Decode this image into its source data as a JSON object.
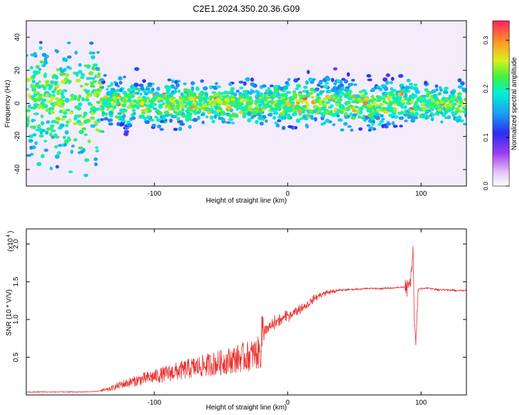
{
  "title": "C2E1.2024.350.20.36.G09",
  "spectrogram": {
    "xlabel": "Height of straight line (km)",
    "ylabel": "Frequency (Hz)",
    "xlim": [
      -196,
      134
    ],
    "ylim": [
      -50,
      50
    ],
    "xticks": [
      -100,
      0,
      100
    ],
    "yticks": [
      -40,
      -20,
      0,
      20,
      40
    ],
    "colorbar": {
      "label": "Normalized spectral amplitude",
      "range": [
        0.0,
        0.34
      ],
      "ticks": [
        "0.0",
        "0.1",
        "0.2",
        "0.3"
      ]
    }
  },
  "snr_plot": {
    "xlabel": "Height of straight line (km)",
    "ylabel": "SNR (10 * V/V)",
    "scale_label": "(x10",
    "scale_exp": "4",
    "xlim": [
      -196,
      134
    ],
    "ylim": [
      0,
      2.2
    ],
    "xticks": [
      -100,
      0,
      100
    ],
    "yticks": [
      "0.5",
      "1.0",
      "1.5",
      "2.0"
    ],
    "line_color": "#e8322e"
  },
  "chart_data": [
    {
      "type": "heatmap",
      "title": "C2E1.2024.350.20.36.G09",
      "xlabel": "Height of straight line (km)",
      "ylabel": "Frequency (Hz)",
      "xlim": [
        -196,
        134
      ],
      "ylim": [
        -50,
        50
      ],
      "colorbar_label": "Normalized spectral amplitude",
      "colorbar_range": [
        0.0,
        0.34
      ],
      "description_values": {
        "band_center_hz": 0,
        "band_halfwidth_hz_high_altitude": 25,
        "peak_amplitude": 0.3
      }
    },
    {
      "type": "line",
      "xlabel": "Height of straight line (km)",
      "ylabel": "SNR (10 * V/V)",
      "y_multiplier": 10000,
      "xlim": [
        -196,
        134
      ],
      "ylim": [
        0,
        2.2
      ],
      "series": [
        {
          "x": [
            -196,
            -150,
            -135,
            -125,
            -110,
            -90,
            -70,
            -50,
            -30,
            -20,
            -19,
            -10,
            0,
            5,
            10,
            15,
            20,
            25,
            30,
            40,
            50,
            60,
            70,
            80,
            88,
            92,
            94,
            95,
            96,
            98,
            100,
            105,
            110,
            120,
            134
          ],
          "y": [
            0.04,
            0.04,
            0.06,
            0.12,
            0.18,
            0.25,
            0.32,
            0.38,
            0.45,
            0.5,
            0.8,
            0.95,
            1.05,
            1.1,
            1.15,
            1.2,
            1.28,
            1.33,
            1.36,
            1.39,
            1.4,
            1.41,
            1.41,
            1.42,
            1.43,
            1.45,
            1.9,
            1.0,
            0.75,
            1.4,
            1.41,
            1.42,
            1.4,
            1.39,
            1.38
          ]
        }
      ]
    }
  ]
}
